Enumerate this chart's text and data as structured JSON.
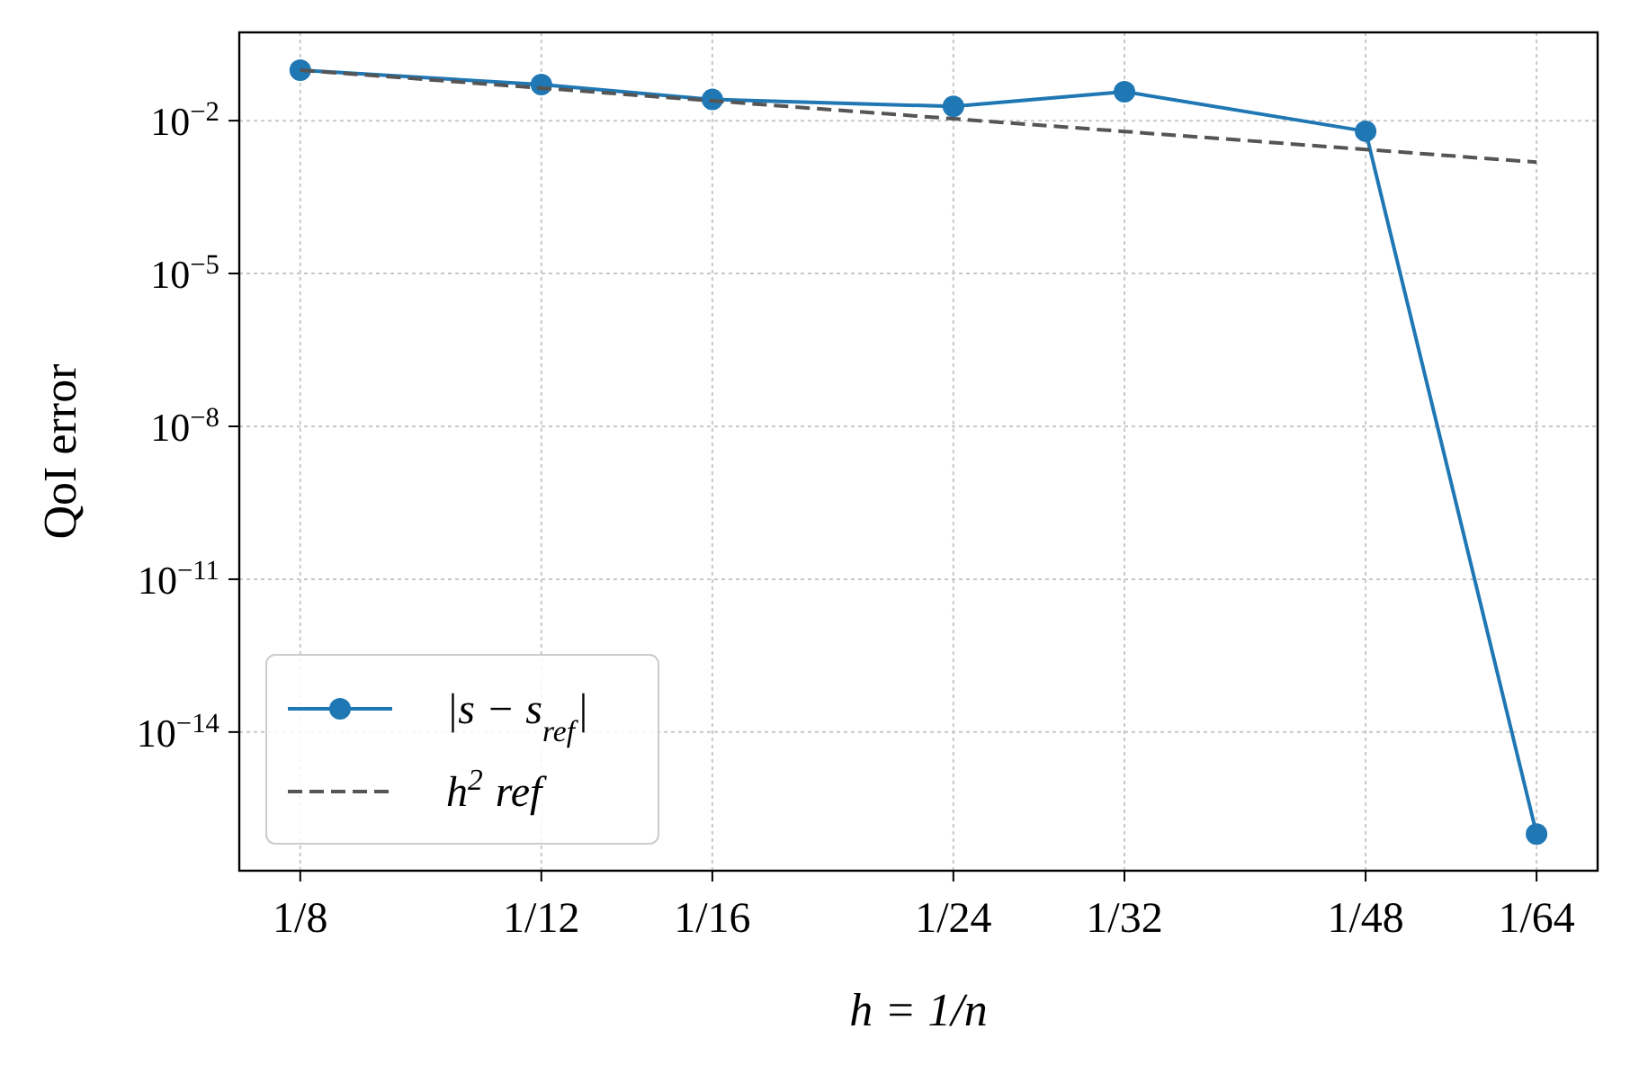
{
  "chart_data": {
    "type": "line",
    "xlabel": "h = 1/n",
    "ylabel": "QoI error",
    "log": "xy",
    "grid": true,
    "legend": "bottom left",
    "x": [
      0.125,
      0.08333,
      0.0625,
      0.04167,
      0.03125,
      0.02083,
      0.015625
    ],
    "xlim": [
      0.1385,
      0.0141
    ],
    "xticks": [
      {
        "value": 0.125,
        "label": "1/8"
      },
      {
        "value": 0.08333,
        "label": "1/12"
      },
      {
        "value": 0.0625,
        "label": "1/16"
      },
      {
        "value": 0.04167,
        "label": "1/24"
      },
      {
        "value": 0.03125,
        "label": "1/32"
      },
      {
        "value": 0.02083,
        "label": "1/48"
      },
      {
        "value": 0.015625,
        "label": "1/64"
      }
    ],
    "ylim": [
      1.9e-17,
      0.54
    ],
    "yticks": [
      {
        "value": 0.01,
        "label": "10$^{−2}$"
      },
      {
        "value": 1e-05,
        "label": "10$^{−5}$"
      },
      {
        "value": 1e-08,
        "label": "10$^{−8}$"
      },
      {
        "value": 1e-11,
        "label": "10$^{−11}$"
      },
      {
        "value": 1e-14,
        "label": "10$^{−14}$"
      }
    ],
    "series": [
      {
        "name": "|s − s$_{ref}$|",
        "color": "#1f77b4",
        "marker": "circle",
        "line_style": "solid",
        "values": [
          0.098,
          0.051,
          0.026,
          0.019,
          0.037,
          0.0062,
          1e-16
        ]
      },
      {
        "name": "h$^{2}$ ref",
        "color": "#555555",
        "marker": "none",
        "line_style": "dashed",
        "values": [
          0.098,
          0.0436,
          0.0245,
          0.0109,
          0.00613,
          0.00272,
          0.00153
        ]
      }
    ]
  }
}
